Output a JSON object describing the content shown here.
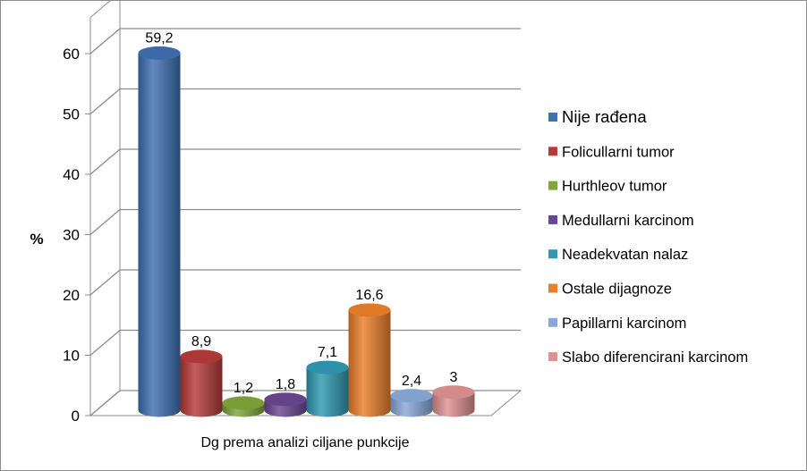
{
  "chart_data": {
    "type": "bar",
    "x_category": "Dg prema analizi ciljane punkcije",
    "ylabel": "%",
    "ylim": [
      0,
      60
    ],
    "yticks": [
      0,
      10,
      20,
      30,
      40,
      50,
      60
    ],
    "ytick_labels": [
      "0",
      "10",
      "20",
      "30",
      "40",
      "50",
      "60"
    ],
    "grid": true,
    "legend_position": "right",
    "style": "3d-cylinder",
    "series": [
      {
        "name": "Nije rađena",
        "value": 59.2,
        "label": "59,2",
        "color": "#3f70b1"
      },
      {
        "name": "Folicullarni tumor",
        "value": 8.9,
        "label": "8,9",
        "color": "#b63a39"
      },
      {
        "name": "Hurthleov tumor",
        "value": 1.2,
        "label": "1,2",
        "color": "#7fa63c"
      },
      {
        "name": "Medullarni karcinom",
        "value": 1.8,
        "label": "1,8",
        "color": "#6a4792"
      },
      {
        "name": "Neadekvatan nalaz",
        "value": 7.1,
        "label": "7,1",
        "color": "#2f99b2"
      },
      {
        "name": "Ostale dijagnoze",
        "value": 16.6,
        "label": "16,6",
        "color": "#ec7f2a"
      },
      {
        "name": "Papillarni karcinom",
        "value": 2.4,
        "label": "2,4",
        "color": "#8aa9da"
      },
      {
        "name": "Slabo diferencirani karcinom",
        "value": 3,
        "label": "3",
        "color": "#de9191"
      }
    ]
  }
}
